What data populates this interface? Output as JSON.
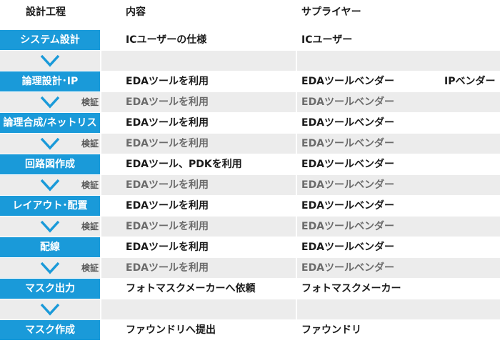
{
  "header": {
    "col1": "設計工程",
    "col2": "内容",
    "col3": "サプライヤー"
  },
  "colors": {
    "step_bg": "#1a9ad9",
    "chevron": "#1a9ad9",
    "sub_bg": "#ececec"
  },
  "rows": [
    {
      "type": "step",
      "label": "システム設計",
      "content": "ICユーザーの仕様",
      "supplier": "ICユーザー",
      "supplier2": ""
    },
    {
      "type": "sub",
      "label": "",
      "content": "",
      "supplier": "",
      "supplier2": ""
    },
    {
      "type": "step",
      "label": "論理設計･IP",
      "content": "EDAツールを利用",
      "supplier": "EDAツールベンダー",
      "supplier2": "IPベンダー"
    },
    {
      "type": "sub",
      "label": "検証",
      "content": "EDAツールを利用",
      "supplier": "EDAツールベンダー",
      "supplier2": ""
    },
    {
      "type": "step",
      "label": "論理合成/ネットリスト",
      "content": "EDAツールを利用",
      "supplier": "EDAツールベンダー",
      "supplier2": ""
    },
    {
      "type": "sub",
      "label": "検証",
      "content": "EDAツールを利用",
      "supplier": "EDAツールベンダー",
      "supplier2": ""
    },
    {
      "type": "step",
      "label": "回路図作成",
      "content": "EDAツール、PDKを利用",
      "supplier": "EDAツールベンダー",
      "supplier2": ""
    },
    {
      "type": "sub",
      "label": "検証",
      "content": "EDAツールを利用",
      "supplier": "EDAツールベンダー",
      "supplier2": ""
    },
    {
      "type": "step",
      "label": "レイアウト･配置",
      "content": "EDAツールを利用",
      "supplier": "EDAツールベンダー",
      "supplier2": ""
    },
    {
      "type": "sub",
      "label": "検証",
      "content": "EDAツールを利用",
      "supplier": "EDAツールベンダー",
      "supplier2": ""
    },
    {
      "type": "step",
      "label": "配線",
      "content": "EDAツールを利用",
      "supplier": "EDAツールベンダー",
      "supplier2": ""
    },
    {
      "type": "sub",
      "label": "検証",
      "content": "EDAツールを利用",
      "supplier": "EDAツールベンダー",
      "supplier2": ""
    },
    {
      "type": "step",
      "label": "マスク出力",
      "content": "フォトマスクメーカーへ依頼",
      "supplier": "フォトマスクメーカー",
      "supplier2": ""
    },
    {
      "type": "sub",
      "label": "",
      "content": "",
      "supplier": "",
      "supplier2": ""
    },
    {
      "type": "step",
      "label": "マスク作成",
      "content": "ファウンドリへ提出",
      "supplier": "ファウンドリ",
      "supplier2": ""
    }
  ]
}
